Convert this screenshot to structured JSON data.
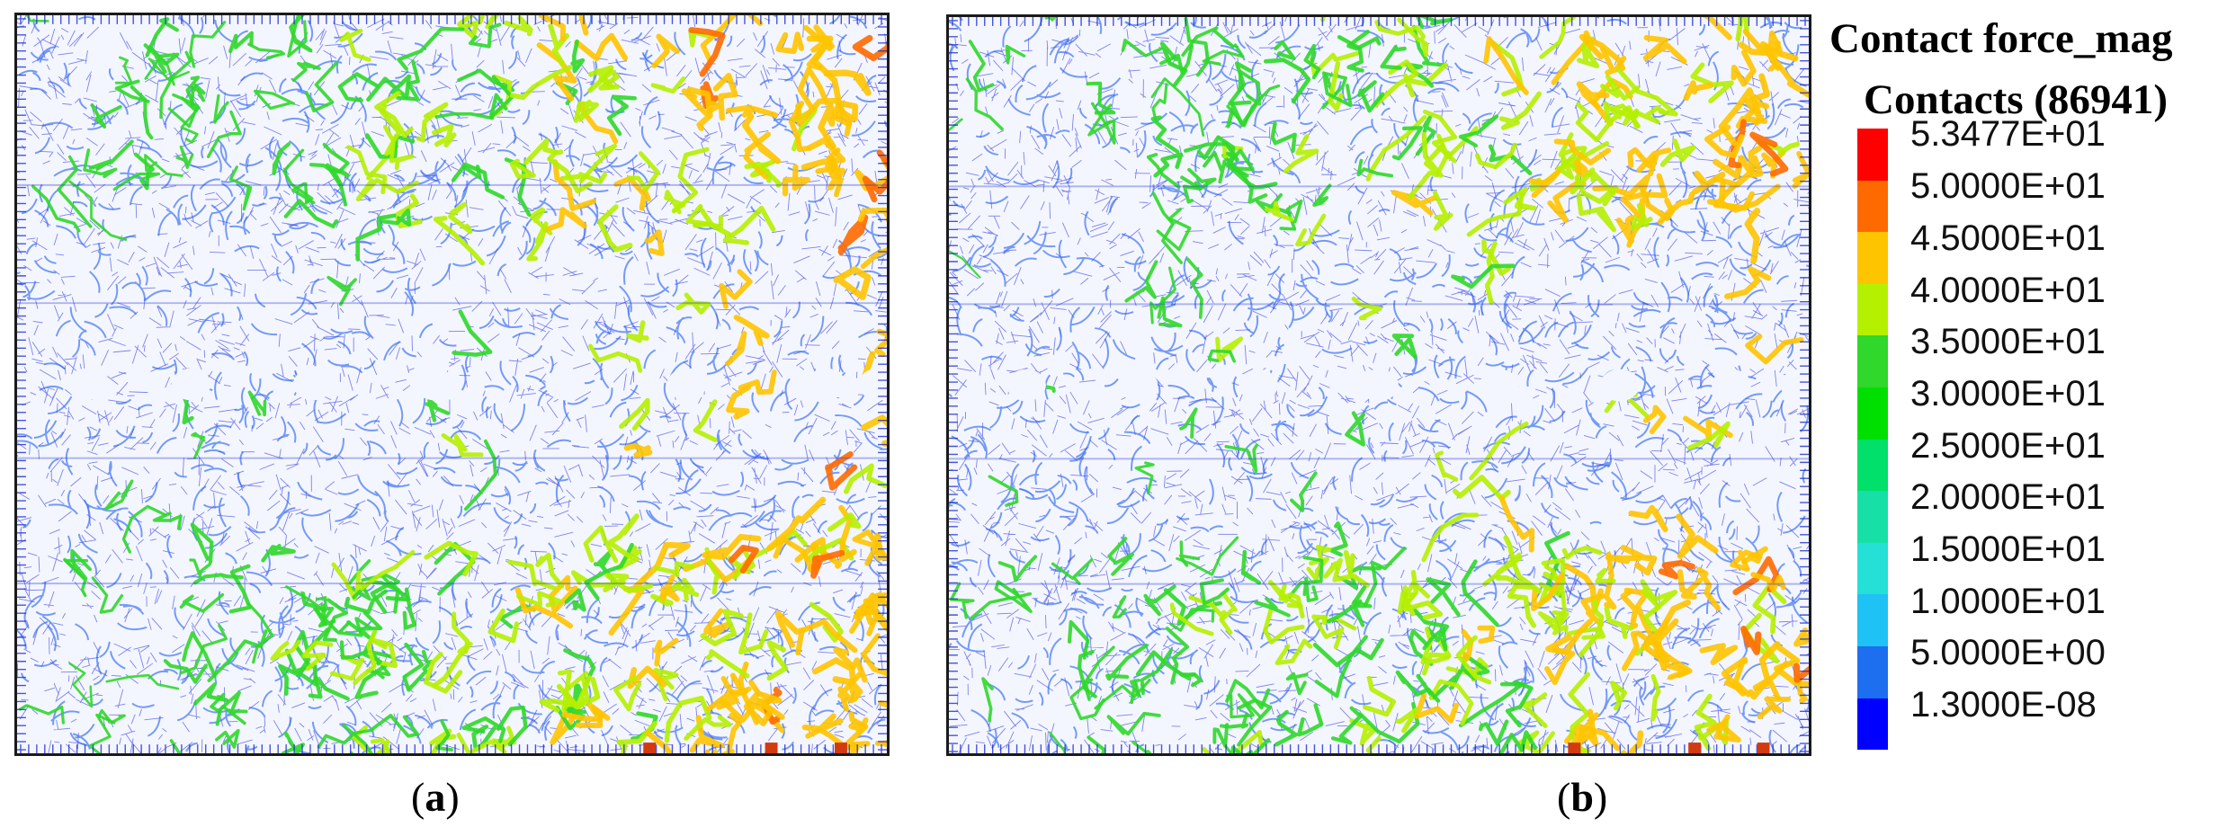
{
  "panels": [
    {
      "id": "a",
      "caption_open": "(",
      "caption_letter": "a",
      "caption_close": ")"
    },
    {
      "id": "b",
      "caption_open": "(",
      "caption_letter": "b",
      "caption_close": ")"
    }
  ],
  "legend": {
    "title": "Contact force_mag",
    "subtitle": "Contacts (86941)",
    "entries": [
      {
        "label": "5.3477E+01",
        "color": "#ff0000"
      },
      {
        "label": "5.0000E+01",
        "color": "#ff6a00"
      },
      {
        "label": "4.5000E+01",
        "color": "#ffc400"
      },
      {
        "label": "4.0000E+01",
        "color": "#b5f000"
      },
      {
        "label": "3.5000E+01",
        "color": "#2fd82a"
      },
      {
        "label": "3.0000E+01",
        "color": "#00e000"
      },
      {
        "label": "2.5000E+01",
        "color": "#00e06a"
      },
      {
        "label": "2.0000E+01",
        "color": "#16e0a6"
      },
      {
        "label": "1.5000E+01",
        "color": "#24e0d6"
      },
      {
        "label": "1.0000E+01",
        "color": "#1ec2f5"
      },
      {
        "label": "5.0000E+00",
        "color": "#1e6ef0"
      },
      {
        "label": "1.3000E-08",
        "color": "#0000ff"
      }
    ]
  }
}
